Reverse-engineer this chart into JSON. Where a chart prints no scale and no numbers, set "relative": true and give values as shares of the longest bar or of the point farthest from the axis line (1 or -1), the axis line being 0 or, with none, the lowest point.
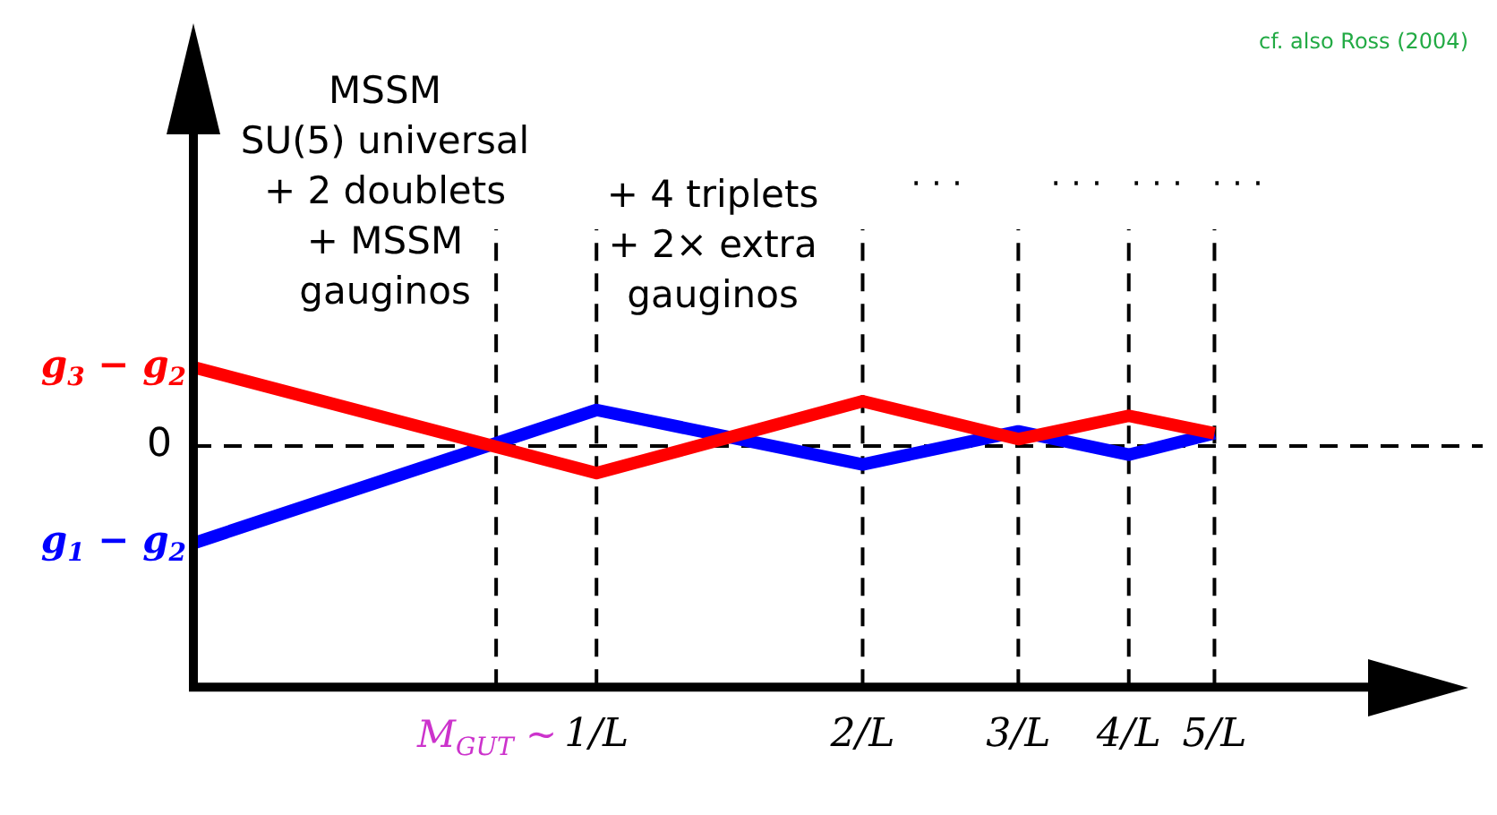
{
  "chart_data": {
    "type": "line",
    "relative": true,
    "annotations": [
      "cf. also Ross (2004)",
      "MSSM\nSU(5) universal\n+ 2 doublets\n+ MSSM\ngauginos",
      "+ 4 triplets\n+ 2× extra\ngauginos",
      "· · ·",
      "· · ·",
      "· · ·",
      "· · ·",
      "M$_{GUT}$ ~"
    ],
    "x": [
      0.35,
      1,
      2,
      3,
      4,
      5
    ],
    "log": "x",
    "xlim": [
      0.35,
      7.6
    ],
    "xticks": [
      {
        "value": 1,
        "label": "1/L"
      },
      {
        "value": 2,
        "label": "2/L"
      },
      {
        "value": 3,
        "label": "3/L"
      },
      {
        "value": 4,
        "label": "4/L"
      },
      {
        "value": 5,
        "label": "5/L"
      }
    ],
    "series": [
      {
        "name": "g$_{3}$ − g$_{2}$",
        "color": "#ff0000",
        "values": [
          0.81,
          -0.28,
          0.46,
          0.07,
          0.31,
          0.13
        ]
      },
      {
        "name": "g$_{1}$ − g$_{2}$",
        "color": "#0000ff",
        "values": [
          -1,
          0.37,
          -0.19,
          0.15,
          -0.09,
          0.13
        ]
      }
    ],
    "ref_lines": [
      {
        "axis": "y",
        "value": 0,
        "label": "0"
      },
      {
        "axis": "x",
        "value": 0.77
      },
      {
        "axis": "x",
        "value": 1
      },
      {
        "axis": "x",
        "value": 2
      },
      {
        "axis": "x",
        "value": 3
      },
      {
        "axis": "x",
        "value": 4
      },
      {
        "axis": "x",
        "value": 5
      }
    ],
    "line_style": "solid",
    "marker": "none",
    "grid": false,
    "legend": false
  }
}
